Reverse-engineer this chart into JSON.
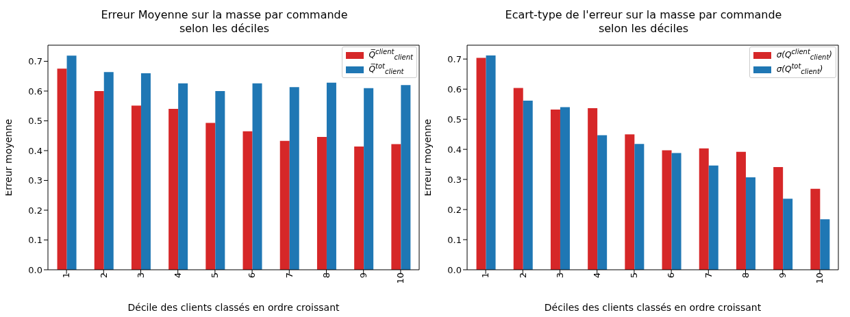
{
  "chart_data": [
    {
      "type": "bar",
      "title": "Erreur Moyenne sur la masse par commande\nselon les déciles",
      "xlabel": "Décile des clients classés en ordre croissant",
      "ylabel": "Erreur moyenne",
      "categories": [
        "1",
        "2",
        "3",
        "4",
        "5",
        "6",
        "7",
        "8",
        "9",
        "10"
      ],
      "series": [
        {
          "name": "Q̅$^{client}$$_{client}$",
          "color": "#d62728",
          "values": [
            0.675,
            0.6,
            0.551,
            0.54,
            0.493,
            0.465,
            0.433,
            0.446,
            0.414,
            0.422
          ]
        },
        {
          "name": "Q̅$^{tot}$$_{client}$",
          "color": "#1f77b4",
          "values": [
            0.719,
            0.664,
            0.66,
            0.626,
            0.6,
            0.626,
            0.613,
            0.628,
            0.61,
            0.62
          ]
        }
      ],
      "ylim": [
        0,
        0.754
      ],
      "yticks": [
        {
          "value": 0,
          "label": "0.0"
        },
        {
          "value": 0.1,
          "label": "0.1"
        },
        {
          "value": 0.2,
          "label": "0.2"
        },
        {
          "value": 0.3,
          "label": "0.3"
        },
        {
          "value": 0.4,
          "label": "0.4"
        },
        {
          "value": 0.5,
          "label": "0.5"
        },
        {
          "value": 0.6,
          "label": "0.6"
        },
        {
          "value": 0.7,
          "label": "0.7"
        }
      ],
      "legend": "top right",
      "grid": false
    },
    {
      "type": "bar",
      "title": "Ecart-type de l'erreur sur la masse par commande\nselon les déciles",
      "xlabel": "Déciles des clients classés en ordre croissant",
      "ylabel": "Erreur moyenne",
      "categories": [
        "1",
        "2",
        "3",
        "4",
        "5",
        "6",
        "7",
        "8",
        "9",
        "10"
      ],
      "series": [
        {
          "name": "σ(Q$^{client}$$_{client}$)",
          "color": "#d62728",
          "values": [
            0.704,
            0.604,
            0.532,
            0.537,
            0.45,
            0.397,
            0.403,
            0.392,
            0.341,
            0.269
          ]
        },
        {
          "name": "σ(Q$^{tot}$$_{client}$)",
          "color": "#1f77b4",
          "values": [
            0.712,
            0.562,
            0.54,
            0.447,
            0.418,
            0.388,
            0.346,
            0.307,
            0.236,
            0.168
          ]
        }
      ],
      "ylim": [
        0,
        0.746
      ],
      "yticks": [
        {
          "value": 0,
          "label": "0.0"
        },
        {
          "value": 0.1,
          "label": "0.1"
        },
        {
          "value": 0.2,
          "label": "0.2"
        },
        {
          "value": 0.3,
          "label": "0.3"
        },
        {
          "value": 0.4,
          "label": "0.4"
        },
        {
          "value": 0.5,
          "label": "0.5"
        },
        {
          "value": 0.6,
          "label": "0.6"
        },
        {
          "value": 0.7,
          "label": "0.7"
        }
      ],
      "legend": "top right",
      "grid": false
    }
  ]
}
